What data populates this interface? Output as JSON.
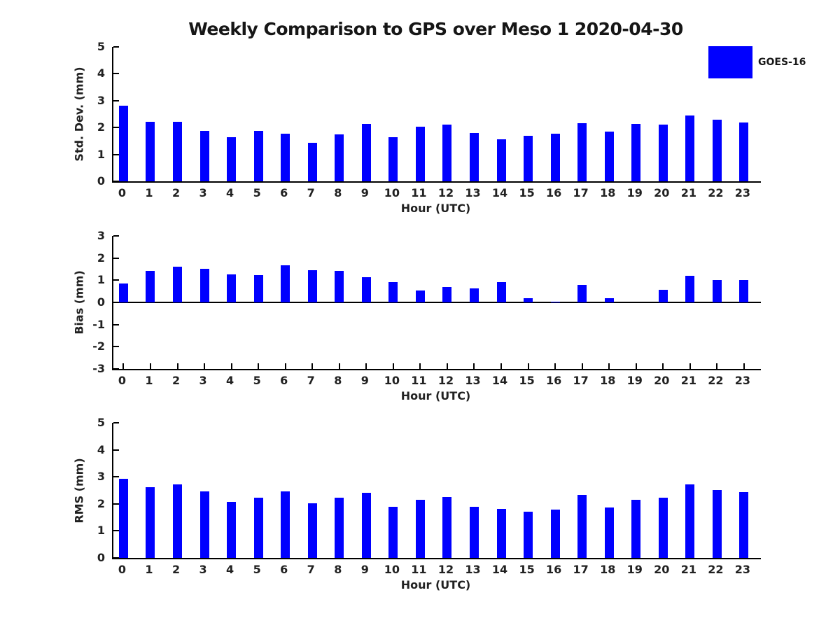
{
  "title": "Weekly Comparison to GPS over Meso 1 2020-04-30",
  "legend": {
    "label": "GOES-16",
    "swatch_color": "#0000ff"
  },
  "chart_data": [
    {
      "type": "bar",
      "title": "",
      "ylabel": "Std. Dev. (mm)",
      "xlabel": "Hour (UTC)",
      "ylim": [
        0,
        5
      ],
      "yticks": [
        0,
        1,
        2,
        3,
        4,
        5
      ],
      "grid": false,
      "legend_position": "top-right-outside",
      "categories": [
        "0",
        "1",
        "2",
        "3",
        "4",
        "5",
        "6",
        "7",
        "8",
        "9",
        "10",
        "11",
        "12",
        "13",
        "14",
        "15",
        "16",
        "17",
        "18",
        "19",
        "20",
        "21",
        "22",
        "23"
      ],
      "series": [
        {
          "name": "GOES-16",
          "color": "#0000ff",
          "values": [
            2.82,
            2.22,
            2.22,
            1.88,
            1.63,
            1.88,
            1.78,
            1.43,
            1.74,
            2.13,
            1.65,
            2.02,
            2.1,
            1.8,
            1.57,
            1.7,
            1.78,
            2.15,
            1.85,
            2.13,
            2.12,
            2.46,
            2.28,
            2.2
          ]
        }
      ]
    },
    {
      "type": "bar",
      "title": "",
      "ylabel": "Bias (mm)",
      "xlabel": "Hour (UTC)",
      "ylim": [
        -3,
        3
      ],
      "yticks": [
        -3,
        -2,
        -1,
        0,
        1,
        2,
        3
      ],
      "grid": false,
      "categories": [
        "0",
        "1",
        "2",
        "3",
        "4",
        "5",
        "6",
        "7",
        "8",
        "9",
        "10",
        "11",
        "12",
        "13",
        "14",
        "15",
        "16",
        "17",
        "18",
        "19",
        "20",
        "21",
        "22",
        "23"
      ],
      "series": [
        {
          "name": "GOES-16",
          "color": "#0000ff",
          "values": [
            0.84,
            1.42,
            1.6,
            1.53,
            1.25,
            1.23,
            1.66,
            1.45,
            1.42,
            1.14,
            0.93,
            0.55,
            0.7,
            0.62,
            0.92,
            0.18,
            0.03,
            0.8,
            0.18,
            0.0,
            0.58,
            1.2,
            1.02,
            1.02
          ]
        }
      ]
    },
    {
      "type": "bar",
      "title": "",
      "ylabel": "RMS (mm)",
      "xlabel": "Hour (UTC)",
      "ylim": [
        0,
        5
      ],
      "yticks": [
        0,
        1,
        2,
        3,
        4,
        5
      ],
      "grid": false,
      "categories": [
        "0",
        "1",
        "2",
        "3",
        "4",
        "5",
        "6",
        "7",
        "8",
        "9",
        "10",
        "11",
        "12",
        "13",
        "14",
        "15",
        "16",
        "17",
        "18",
        "19",
        "20",
        "21",
        "22",
        "23"
      ],
      "series": [
        {
          "name": "GOES-16",
          "color": "#0000ff",
          "values": [
            2.93,
            2.62,
            2.72,
            2.45,
            2.08,
            2.24,
            2.45,
            2.03,
            2.24,
            2.42,
            1.9,
            2.14,
            2.25,
            1.9,
            1.82,
            1.72,
            1.8,
            2.32,
            1.87,
            2.15,
            2.23,
            2.72,
            2.52,
            2.43
          ]
        }
      ]
    }
  ]
}
